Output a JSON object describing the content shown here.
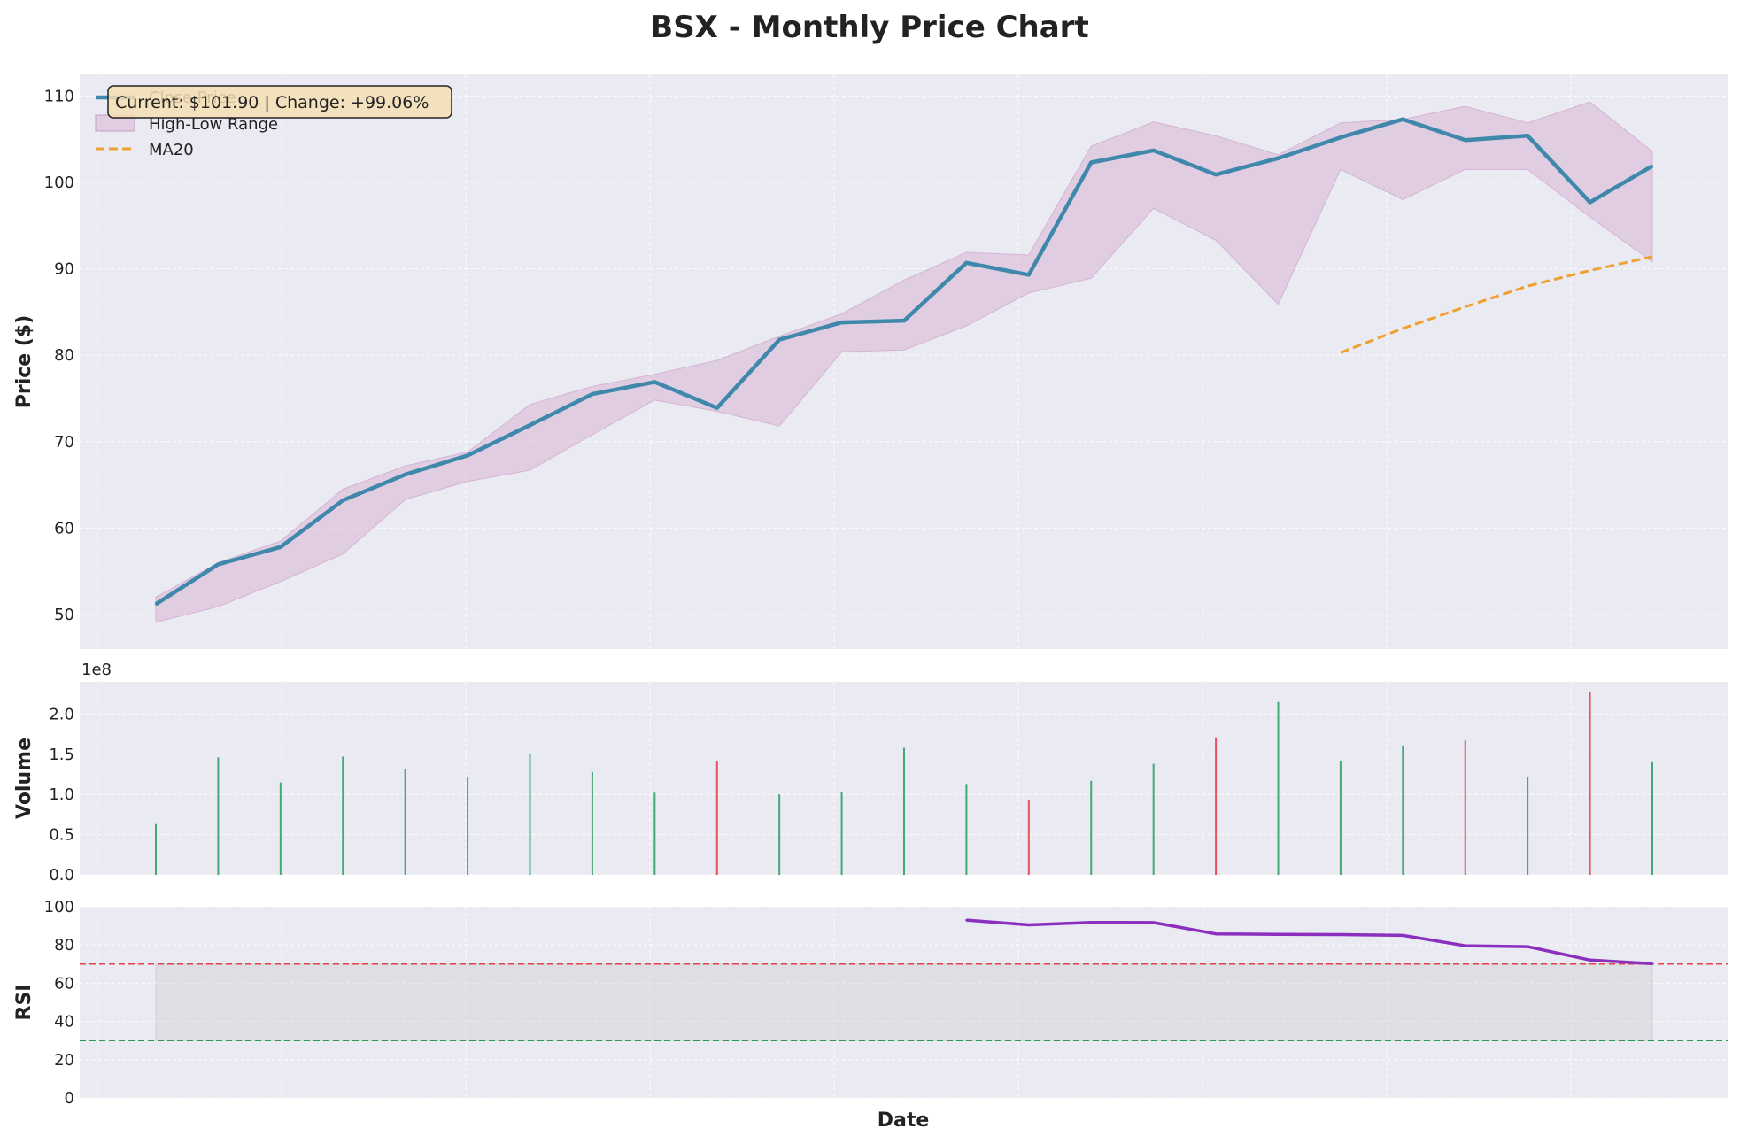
{
  "chart_data": {
    "type": "line",
    "title": "BSX - Monthly Price Chart",
    "xlabel": "Date",
    "annotation": "Current: $101.90 | Change: +99.06%",
    "colors": {
      "close": "#3f88ac",
      "range": "#d7b4d4",
      "ma20": "#f0a030",
      "vol_up": "#2ca36a",
      "vol_down": "#e8404c",
      "rsi": "#8a2fbe",
      "overbought": "#e8404c",
      "oversold": "#2c9a50",
      "annot_fill": "#f5deb3"
    },
    "price": {
      "ylabel": "Price ($)",
      "ylim": [
        46,
        112.5
      ],
      "yticks": [
        50,
        60,
        70,
        80,
        90,
        100,
        110
      ],
      "legend": [
        "Close Price",
        "High-Low Range",
        "MA20"
      ],
      "legend_position": "upper-left",
      "close": [
        51.2,
        55.8,
        57.8,
        63.2,
        66.2,
        68.4,
        71.9,
        75.5,
        76.9,
        73.9,
        81.8,
        83.8,
        84.0,
        90.7,
        89.3,
        102.3,
        103.7,
        100.9,
        102.8,
        105.2,
        107.3,
        104.9,
        105.4,
        97.7,
        101.9
      ],
      "high": [
        52.0,
        56.0,
        58.5,
        64.5,
        67.2,
        68.8,
        74.3,
        76.4,
        77.8,
        79.4,
        82.2,
        84.8,
        88.7,
        91.9,
        91.6,
        104.2,
        107.0,
        105.4,
        103.2,
        106.9,
        107.3,
        108.8,
        106.9,
        109.3,
        103.6
      ],
      "low": [
        49.1,
        50.9,
        53.8,
        57.0,
        63.3,
        65.4,
        66.7,
        70.8,
        74.8,
        73.5,
        71.8,
        80.4,
        80.6,
        83.4,
        87.2,
        88.9,
        97.0,
        93.3,
        85.9,
        101.5,
        98.0,
        101.5,
        101.5,
        96.0,
        90.8
      ],
      "ma20": [
        null,
        null,
        null,
        null,
        null,
        null,
        null,
        null,
        null,
        null,
        null,
        null,
        null,
        null,
        null,
        null,
        null,
        null,
        null,
        80.3,
        83.1,
        85.6,
        88.0,
        89.8,
        91.4
      ]
    },
    "volume": {
      "ylabel": "Volume",
      "scale_label": "1e8",
      "ylim": [
        0,
        2.4
      ],
      "yticks": [
        "0.0",
        "0.5",
        "1.0",
        "1.5",
        "2.0"
      ],
      "values": [
        0.63,
        1.46,
        1.15,
        1.47,
        1.31,
        1.21,
        1.51,
        1.28,
        1.02,
        1.42,
        1.0,
        1.03,
        1.58,
        1.13,
        0.93,
        1.17,
        1.38,
        1.71,
        2.15,
        1.41,
        1.61,
        1.67,
        1.22,
        2.27,
        1.4
      ],
      "direction": [
        "up",
        "up",
        "up",
        "up",
        "up",
        "up",
        "up",
        "up",
        "up",
        "down",
        "up",
        "up",
        "up",
        "up",
        "down",
        "up",
        "up",
        "down",
        "up",
        "up",
        "up",
        "down",
        "up",
        "down",
        "up"
      ]
    },
    "rsi": {
      "ylabel": "RSI",
      "ylim": [
        0,
        100
      ],
      "yticks": [
        0,
        20,
        40,
        60,
        80,
        100
      ],
      "overbought": 70,
      "oversold": 30,
      "values": [
        null,
        null,
        null,
        null,
        null,
        null,
        null,
        null,
        null,
        null,
        null,
        null,
        null,
        93.0,
        90.5,
        91.8,
        91.7,
        85.8,
        85.5,
        85.4,
        85.0,
        79.6,
        79.1,
        72.1,
        70.2
      ]
    }
  }
}
